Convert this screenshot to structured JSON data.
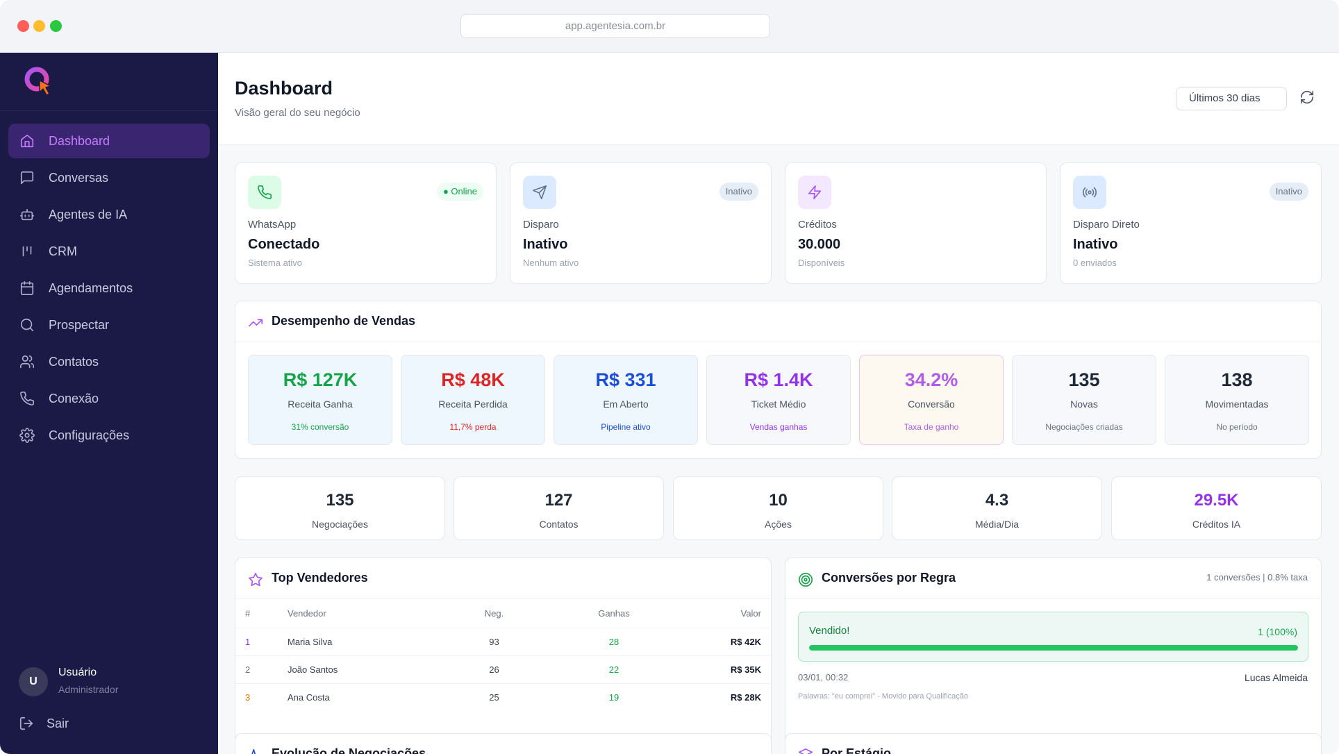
{
  "browser": {
    "url": "app.agentesia.com.br"
  },
  "sidebar": {
    "items": [
      {
        "label": "Dashboard",
        "icon": "home-icon",
        "active": true
      },
      {
        "label": "Conversas",
        "icon": "chat-icon"
      },
      {
        "label": "Agentes de IA",
        "icon": "bot-icon"
      },
      {
        "label": "CRM",
        "icon": "kanban-icon"
      },
      {
        "label": "Agendamentos",
        "icon": "calendar-icon"
      },
      {
        "label": "Prospectar",
        "icon": "search-icon"
      },
      {
        "label": "Contatos",
        "icon": "users-icon"
      },
      {
        "label": "Conexão",
        "icon": "phone-icon"
      },
      {
        "label": "Configurações",
        "icon": "gear-icon"
      }
    ],
    "user": {
      "initial": "U",
      "name": "Usuário",
      "role": "Administrador"
    },
    "logout": "Sair"
  },
  "header": {
    "title": "Dashboard",
    "subtitle": "Visão geral do seu negócio",
    "range": "Últimos 30 dias"
  },
  "status_cards": [
    {
      "label": "WhatsApp",
      "value": "Conectado",
      "note": "Sistema ativo",
      "badge": "● Online",
      "icon": "phone-icon"
    },
    {
      "label": "Disparo",
      "value": "Inativo",
      "note": "Nenhum ativo",
      "badge": "Inativo",
      "icon": "send-icon"
    },
    {
      "label": "Créditos",
      "value": "30.000",
      "note": "Disponíveis",
      "badge": "",
      "icon": "zap-icon"
    },
    {
      "label": "Disparo Direto",
      "value": "Inativo",
      "note": "0 enviados",
      "badge": "Inativo",
      "icon": "broadcast-icon"
    }
  ],
  "sales": {
    "title": "Desempenho de Vendas",
    "metrics": [
      {
        "value": "R$ 127K",
        "label": "Receita Ganha",
        "note": "31% conversão"
      },
      {
        "value": "R$ 48K",
        "label": "Receita Perdida",
        "note": "11,7% perda"
      },
      {
        "value": "R$ 331",
        "label": "Em Aberto",
        "note": "Pipeline ativo"
      },
      {
        "value": "R$ 1.4K",
        "label": "Ticket Médio",
        "note": "Vendas ganhas"
      },
      {
        "value": "34.2%",
        "label": "Conversão",
        "note": "Taxa de ganho"
      },
      {
        "value": "135",
        "label": "Novas",
        "note": "Negociações criadas"
      },
      {
        "value": "138",
        "label": "Movimentadas",
        "note": "No período"
      }
    ]
  },
  "kpis": [
    {
      "value": "135",
      "label": "Negociações"
    },
    {
      "value": "127",
      "label": "Contatos"
    },
    {
      "value": "10",
      "label": "Ações"
    },
    {
      "value": "4.3",
      "label": "Média/Dia"
    },
    {
      "value": "29.5K",
      "label": "Créditos IA"
    }
  ],
  "top_sellers": {
    "title": "Top Vendedores",
    "columns": [
      "#",
      "Vendedor",
      "Neg.",
      "Ganhas",
      "Valor"
    ],
    "rows": [
      {
        "rank": "1",
        "name": "Maria Silva",
        "neg": "93",
        "won": "28",
        "value": "R$ 42K"
      },
      {
        "rank": "2",
        "name": "João Santos",
        "neg": "26",
        "won": "22",
        "value": "R$ 35K"
      },
      {
        "rank": "3",
        "name": "Ana Costa",
        "neg": "25",
        "won": "19",
        "value": "R$ 28K"
      }
    ]
  },
  "conversions": {
    "title": "Conversões por Regra",
    "meta": "1 conversões | 0.8% taxa",
    "rule": "Vendido!",
    "count": "1 (100%)",
    "progress_percent": 100,
    "date": "03/01, 00:32",
    "user": "Lucas Almeida",
    "words": "Palavras: \"eu comprei\" - Movido para Qualificação"
  },
  "bottom": {
    "left_title": "Evolução de Negociações",
    "right_title": "Por Estágio"
  },
  "colors": {
    "sidebar_bg": "#1b1a47",
    "accent": "#c77dff",
    "green": "#16a34a",
    "red": "#dc2626",
    "blue": "#1d4ed8",
    "purple": "#9333ea"
  }
}
